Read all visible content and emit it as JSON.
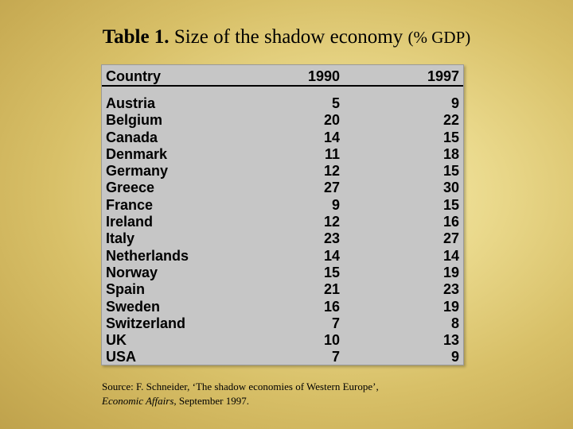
{
  "title": {
    "bold": "Table 1.",
    "main": " Size of the shadow economy ",
    "unit": "(% GDP)"
  },
  "table": {
    "headers": {
      "country": "Country",
      "y1990": "1990",
      "y1997": "1997"
    },
    "rows": [
      {
        "country": "Austria",
        "y1990": "5",
        "y1997": "9"
      },
      {
        "country": "Belgium",
        "y1990": "20",
        "y1997": "22"
      },
      {
        "country": "Canada",
        "y1990": "14",
        "y1997": "15"
      },
      {
        "country": "Denmark",
        "y1990": "11",
        "y1997": "18"
      },
      {
        "country": "Germany",
        "y1990": "12",
        "y1997": "15"
      },
      {
        "country": "Greece",
        "y1990": "27",
        "y1997": "30"
      },
      {
        "country": "France",
        "y1990": "9",
        "y1997": "15"
      },
      {
        "country": "Ireland",
        "y1990": "12",
        "y1997": "16"
      },
      {
        "country": "Italy",
        "y1990": "23",
        "y1997": "27"
      },
      {
        "country": "Netherlands",
        "y1990": "14",
        "y1997": "14"
      },
      {
        "country": "Norway",
        "y1990": "15",
        "y1997": "19"
      },
      {
        "country": "Spain",
        "y1990": "21",
        "y1997": "23"
      },
      {
        "country": "Sweden",
        "y1990": "16",
        "y1997": "19"
      },
      {
        "country": "Switzerland",
        "y1990": "7",
        "y1997": "8"
      },
      {
        "country": "UK",
        "y1990": "10",
        "y1997": "13"
      },
      {
        "country": "USA",
        "y1990": "7",
        "y1997": "9"
      }
    ]
  },
  "source": {
    "line1": "Source: F. Schneider, ‘The shadow economies of Western Europe’,",
    "journal": "Economic Affairs",
    "line2_rest": ", September 1997."
  }
}
